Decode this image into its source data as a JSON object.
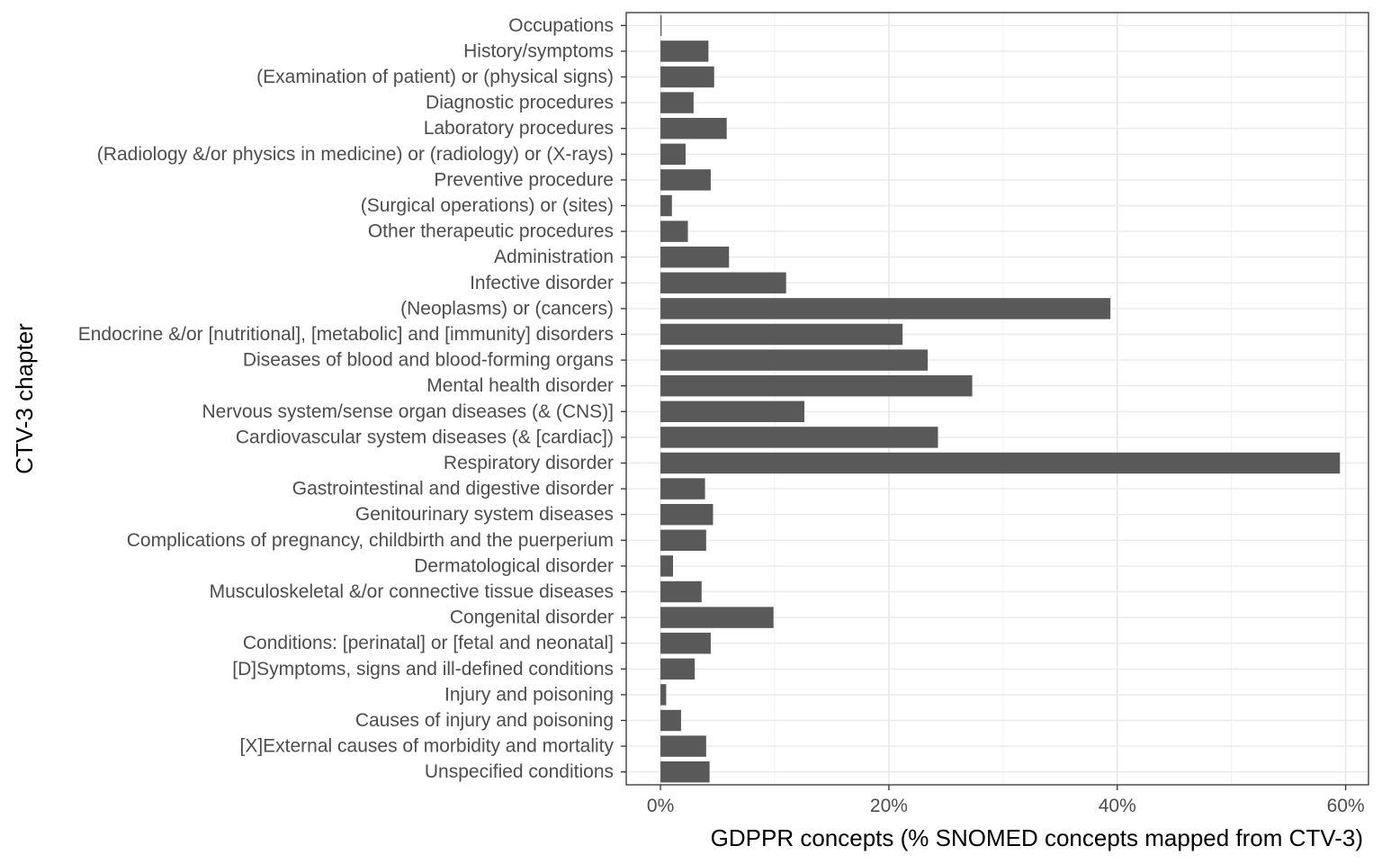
{
  "chart_data": {
    "type": "bar",
    "orientation": "horizontal",
    "xlabel": "GDPPR concepts (% SNOMED concepts mapped from CTV-3)",
    "ylabel": "CTV-3 chapter",
    "xlim": [
      -3,
      62
    ],
    "x_ticks": [
      {
        "value": 0,
        "label": "0%"
      },
      {
        "value": 20,
        "label": "20%"
      },
      {
        "value": 40,
        "label": "40%"
      },
      {
        "value": 60,
        "label": "60%"
      }
    ],
    "grid": true,
    "bar_color": "#595959",
    "categories": [
      "Occupations",
      "History/symptoms",
      "(Examination of patient) or (physical signs)",
      "Diagnostic procedures",
      "Laboratory procedures",
      "(Radiology &/or physics in medicine) or (radiology) or (X-rays)",
      "Preventive procedure",
      "(Surgical operations) or (sites)",
      "Other therapeutic procedures",
      "Administration",
      "Infective disorder",
      "(Neoplasms) or (cancers)",
      "Endocrine &/or [nutritional], [metabolic] and [immunity] disorders",
      "Diseases of blood and blood-forming organs",
      "Mental health disorder",
      "Nervous system/sense organ diseases (& (CNS)]",
      "Cardiovascular system diseases (& [cardiac])",
      "Respiratory disorder",
      "Gastrointestinal and digestive disorder",
      "Genitourinary system diseases",
      "Complications of pregnancy, childbirth and the puerperium",
      "Dermatological disorder",
      "Musculoskeletal &/or connective tissue diseases",
      "Congenital disorder",
      "Conditions: [perinatal] or [fetal and neonatal]",
      "[D]Symptoms, signs and ill-defined conditions",
      "Injury and poisoning",
      "Causes of injury and poisoning",
      "[X]External causes of morbidity and mortality",
      "Unspecified conditions"
    ],
    "values": [
      0.1,
      4.2,
      4.7,
      2.9,
      5.8,
      2.2,
      4.4,
      1.0,
      2.4,
      6.0,
      11.0,
      39.4,
      21.2,
      23.4,
      27.3,
      12.6,
      24.3,
      59.5,
      3.9,
      4.6,
      4.0,
      1.1,
      3.6,
      9.9,
      4.4,
      3.0,
      0.5,
      1.8,
      4.0,
      4.3
    ]
  }
}
